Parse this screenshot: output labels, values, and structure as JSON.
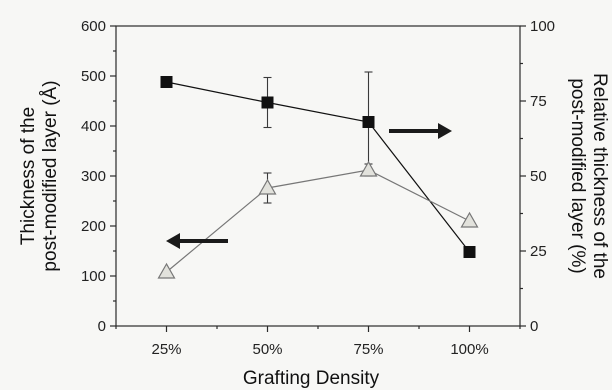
{
  "chart_data": {
    "type": "line",
    "categories": [
      "25%",
      "50%",
      "75%",
      "100%"
    ],
    "xlabel": "Grafting Density",
    "ylabel_left": "Thickness of the post-modified layer (Å)",
    "ylabel_left_lines": [
      "Thickness of the",
      "post-modified layer (Å)"
    ],
    "ylabel_right": "Relative thickness of the post-modified layer (%)",
    "ylabel_right_lines": [
      "Relative thickness of the",
      "post-modified layer (%)"
    ],
    "ylim_left": [
      0,
      600
    ],
    "ylim_right": [
      0,
      100
    ],
    "yticks_left": [
      0,
      100,
      200,
      300,
      400,
      500,
      600
    ],
    "yticks_right": [
      0,
      25,
      50,
      75,
      100
    ],
    "grid": false,
    "series": [
      {
        "axis": "left",
        "marker": "filled-square",
        "color": "#111111",
        "values": [
          488,
          447,
          408,
          148
        ],
        "errors": [
          null,
          50,
          100,
          null
        ]
      },
      {
        "axis": "right",
        "marker": "open-triangle",
        "color": "#777777",
        "values": [
          18,
          46,
          52,
          35
        ],
        "errors": [
          null,
          5,
          2,
          null
        ]
      }
    ],
    "annotations": [
      {
        "type": "arrow",
        "direction": "left",
        "points_to_axis": "left",
        "near_category": "50%"
      },
      {
        "type": "arrow",
        "direction": "right",
        "points_to_axis": "right",
        "near_category": "75%"
      }
    ]
  }
}
